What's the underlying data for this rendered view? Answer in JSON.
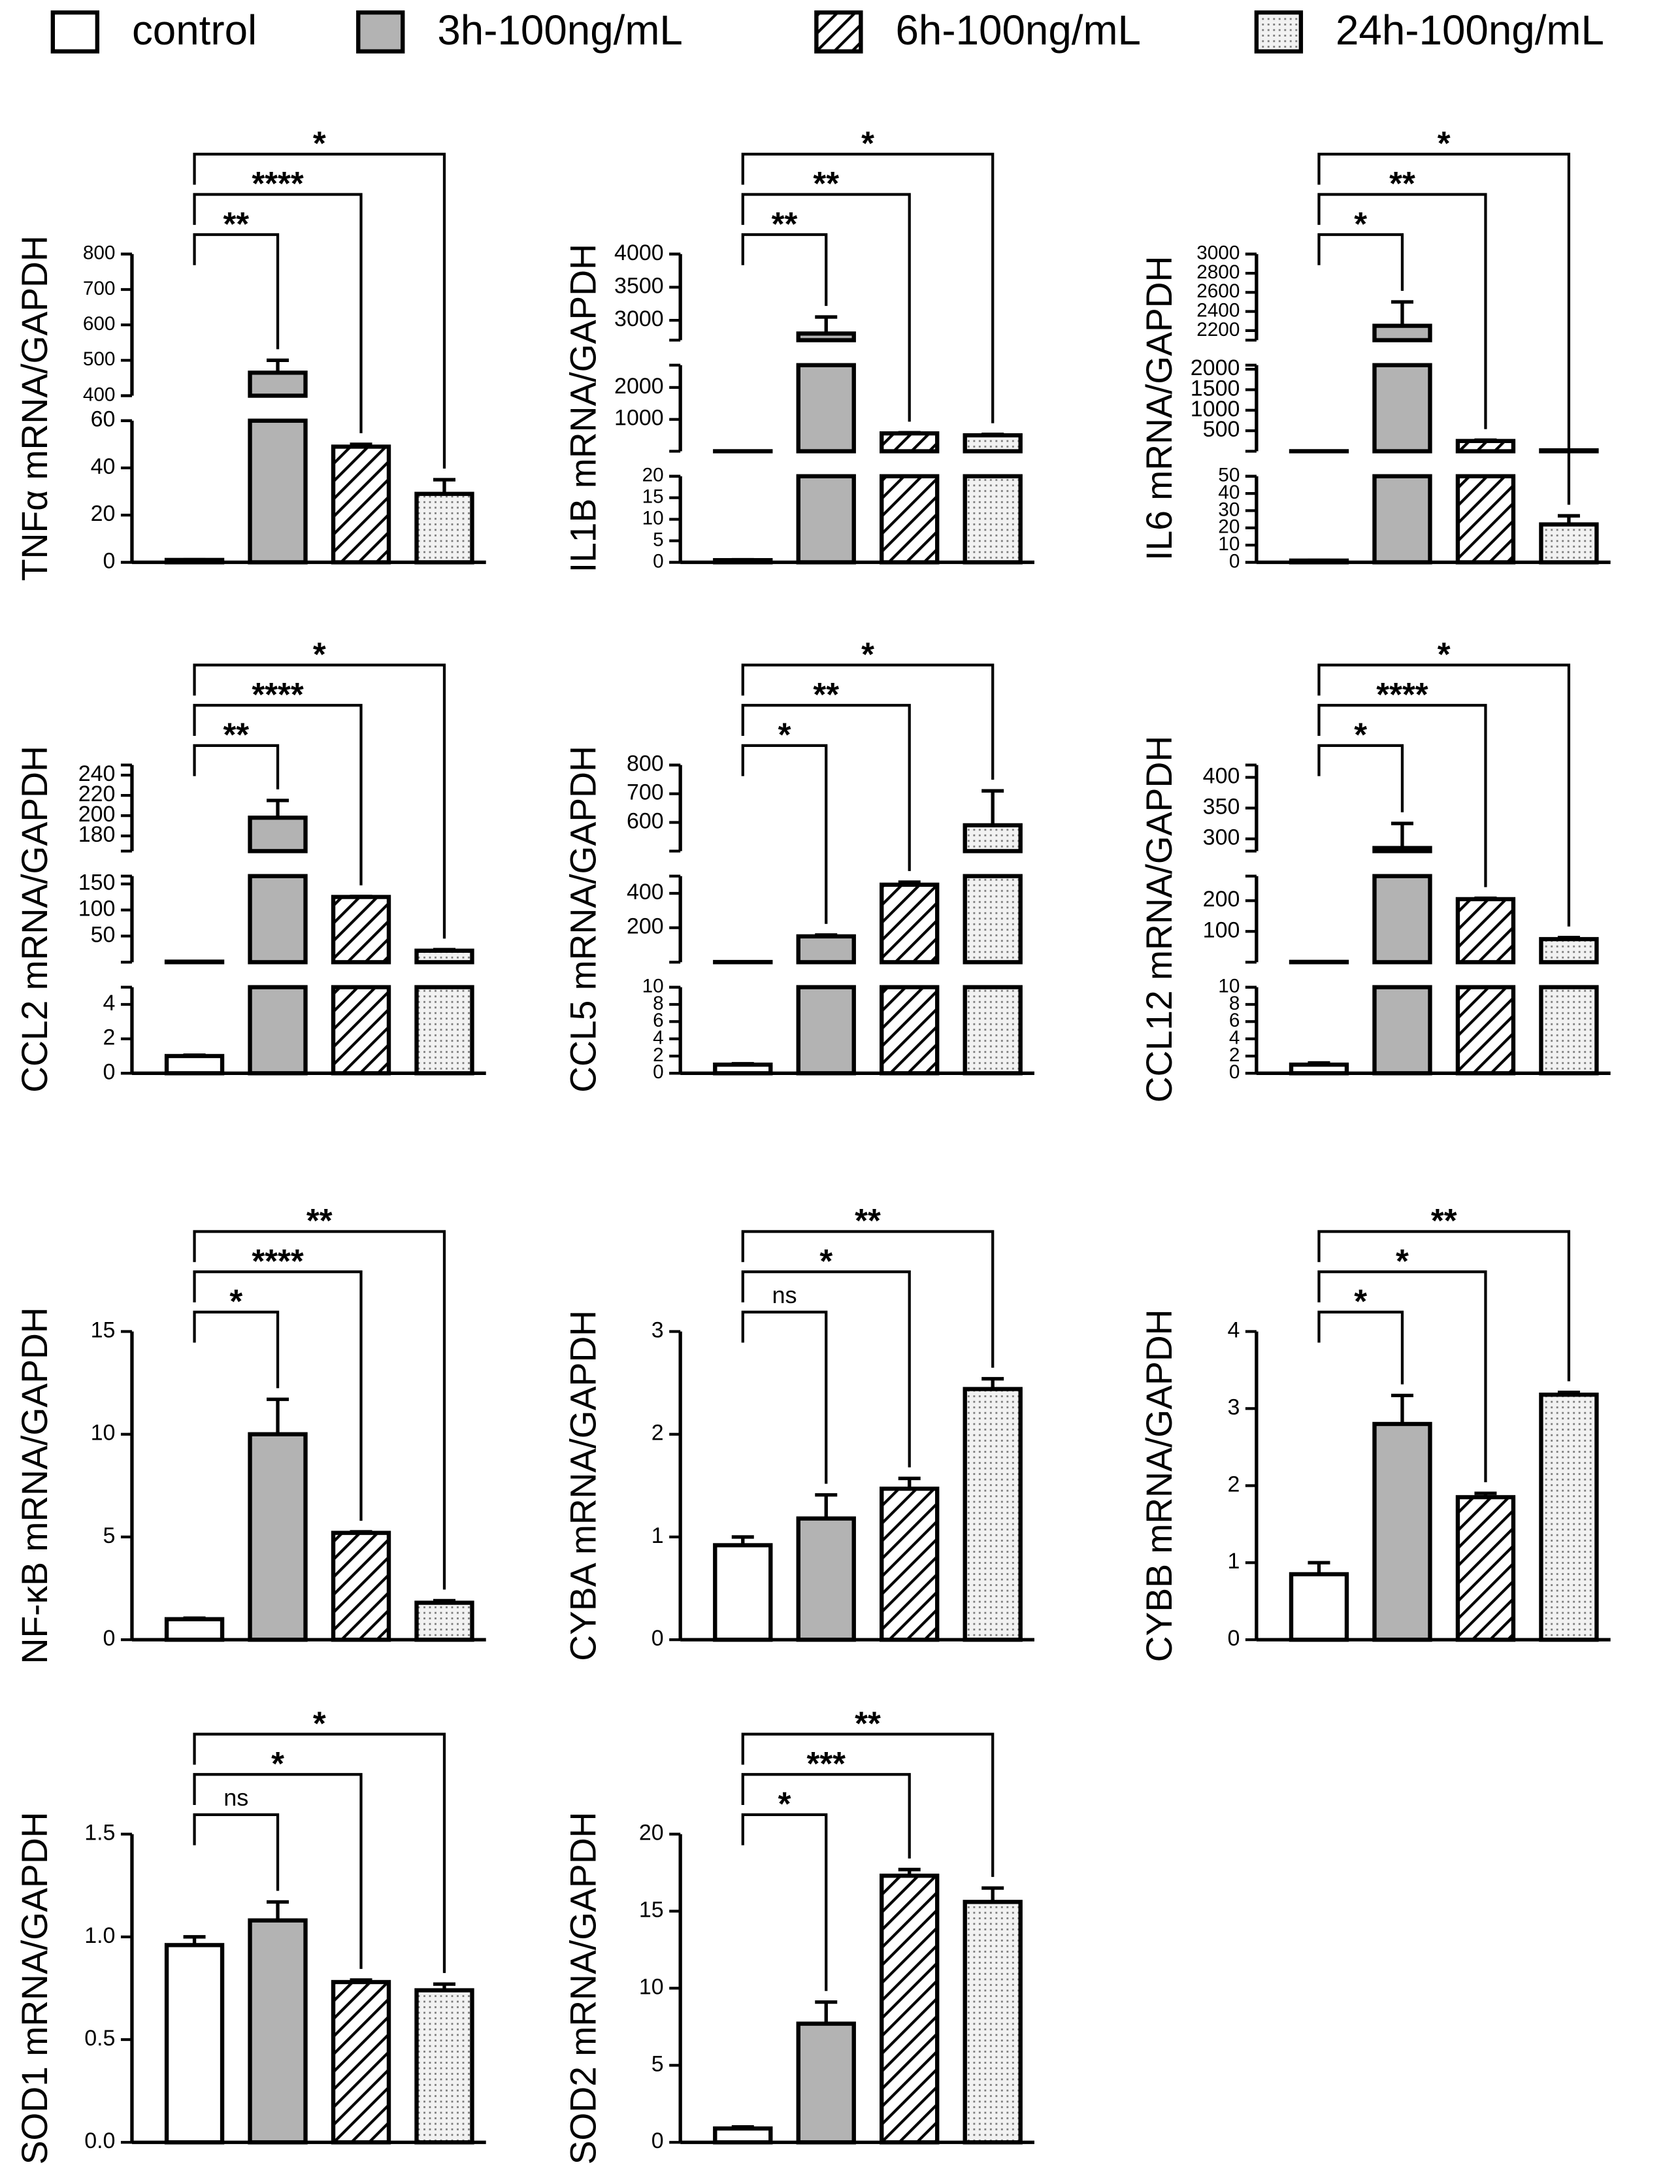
{
  "legend": {
    "entries": [
      "control",
      "3h-100ng/mL",
      "6h-100ng/mL",
      "24h-100ng/mL"
    ]
  },
  "chart_data": [
    {
      "type": "bar",
      "ylabel": "TNFα mRNA/GAPDH",
      "values": [
        1,
        465,
        49,
        29
      ],
      "errors": [
        0.1,
        35,
        1,
        6
      ],
      "segments": [
        {
          "ylim": [
            0,
            60
          ],
          "yticks": [
            0,
            20,
            40,
            60
          ]
        },
        {
          "ylim": [
            400,
            800
          ],
          "yticks": [
            400,
            500,
            600,
            700,
            800
          ]
        }
      ],
      "significance": [
        "**",
        "****",
        "*"
      ]
    },
    {
      "type": "bar",
      "ylabel": "IL1B mRNA/GAPDH",
      "values": [
        0.5,
        2800,
        560,
        500
      ],
      "errors": [
        0.1,
        250,
        20,
        30
      ],
      "segments": [
        {
          "ylim": [
            0,
            20
          ],
          "yticks": [
            0,
            5,
            10,
            15,
            20
          ]
        },
        {
          "ylim": [
            0,
            2700
          ],
          "yticks": [
            1000,
            2000
          ]
        },
        {
          "ylim": [
            2700,
            4000
          ],
          "yticks": [
            3000,
            3500,
            4000
          ]
        }
      ],
      "significance": [
        "**",
        "**",
        "*"
      ]
    },
    {
      "type": "bar",
      "ylabel": "IL6 mRNA/GAPDH",
      "values": [
        1,
        2250,
        250,
        22
      ],
      "errors": [
        0.1,
        250,
        20,
        5
      ],
      "segments": [
        {
          "ylim": [
            0,
            50
          ],
          "yticks": [
            0,
            10,
            20,
            30,
            40,
            50
          ]
        },
        {
          "ylim": [
            0,
            2100
          ],
          "yticks": [
            500,
            1000,
            1500,
            2000
          ]
        },
        {
          "ylim": [
            2100,
            3000
          ],
          "yticks": [
            2200,
            2400,
            2600,
            2800,
            3000
          ]
        }
      ],
      "significance": [
        "*",
        "**",
        "*"
      ]
    },
    {
      "type": "bar",
      "ylabel": "CCL2 mRNA/GAPDH",
      "values": [
        1,
        198,
        125,
        22
      ],
      "errors": [
        0.05,
        17,
        1,
        2
      ],
      "segments": [
        {
          "ylim": [
            0,
            5
          ],
          "yticks": [
            0,
            2,
            4
          ]
        },
        {
          "ylim": [
            0,
            165
          ],
          "yticks": [
            50,
            100,
            150
          ]
        },
        {
          "ylim": [
            165,
            250
          ],
          "yticks": [
            180,
            200,
            220,
            240
          ]
        }
      ],
      "significance": [
        "**",
        "****",
        "*"
      ]
    },
    {
      "type": "bar",
      "ylabel": "CCL5 mRNA/GAPDH",
      "values": [
        1,
        150,
        450,
        590
      ],
      "errors": [
        0.1,
        8,
        15,
        120
      ],
      "segments": [
        {
          "ylim": [
            0,
            10
          ],
          "yticks": [
            0,
            2,
            4,
            6,
            8,
            10
          ]
        },
        {
          "ylim": [
            0,
            500
          ],
          "yticks": [
            200,
            400
          ]
        },
        {
          "ylim": [
            500,
            800
          ],
          "yticks": [
            600,
            700,
            800
          ]
        }
      ],
      "significance": [
        "*",
        "**",
        "*"
      ]
    },
    {
      "type": "bar",
      "ylabel": "CCL12 mRNA/GAPDH",
      "values": [
        1,
        285,
        205,
        75
      ],
      "errors": [
        0.2,
        40,
        3,
        5
      ],
      "segments": [
        {
          "ylim": [
            0,
            10
          ],
          "yticks": [
            0,
            2,
            4,
            6,
            8,
            10
          ]
        },
        {
          "ylim": [
            0,
            280
          ],
          "yticks": [
            100,
            200
          ]
        },
        {
          "ylim": [
            280,
            420
          ],
          "yticks": [
            300,
            350,
            400
          ]
        }
      ],
      "significance": [
        "*",
        "****",
        "*"
      ]
    },
    {
      "type": "bar",
      "ylabel": "NF-κB mRNA/GAPDH",
      "values": [
        1,
        10,
        5.2,
        1.8
      ],
      "errors": [
        0.05,
        1.7,
        0.05,
        0.1
      ],
      "ylim": [
        0,
        15
      ],
      "yticks": [
        0,
        5,
        10,
        15
      ],
      "significance": [
        "*",
        "****",
        "**"
      ]
    },
    {
      "type": "bar",
      "ylabel": "CYBA mRNA/GAPDH",
      "values": [
        0.92,
        1.18,
        1.47,
        2.44
      ],
      "errors": [
        0.08,
        0.23,
        0.1,
        0.1
      ],
      "ylim": [
        0,
        3
      ],
      "yticks": [
        0,
        1,
        2,
        3
      ],
      "significance": [
        "ns",
        "*",
        "**"
      ]
    },
    {
      "type": "bar",
      "ylabel": "CYBB mRNA/GAPDH",
      "values": [
        0.85,
        2.8,
        1.85,
        3.18
      ],
      "errors": [
        0.15,
        0.37,
        0.05,
        0.03
      ],
      "ylim": [
        0,
        4
      ],
      "yticks": [
        0,
        1,
        2,
        3,
        4
      ],
      "significance": [
        "*",
        "*",
        "**"
      ]
    },
    {
      "type": "bar",
      "ylabel": "SOD1 mRNA/GAPDH",
      "values": [
        0.96,
        1.08,
        0.78,
        0.74
      ],
      "errors": [
        0.04,
        0.09,
        0.01,
        0.03
      ],
      "ylim": [
        0,
        1.5
      ],
      "yticks": [
        {
          "value": 0,
          "label": "0.0"
        },
        {
          "value": 0.5,
          "label": "0.5"
        },
        {
          "value": 1,
          "label": "1.0"
        },
        {
          "value": 1.5,
          "label": "1.5"
        }
      ],
      "significance": [
        "ns",
        "*",
        "*"
      ]
    },
    {
      "type": "bar",
      "ylabel": "SOD2 mRNA/GAPDH",
      "values": [
        0.9,
        7.7,
        17.3,
        15.6
      ],
      "errors": [
        0.1,
        1.4,
        0.4,
        0.9
      ],
      "ylim": [
        0,
        20
      ],
      "yticks": [
        0,
        5,
        10,
        15,
        20
      ],
      "significance": [
        "*",
        "***",
        "**"
      ]
    }
  ]
}
